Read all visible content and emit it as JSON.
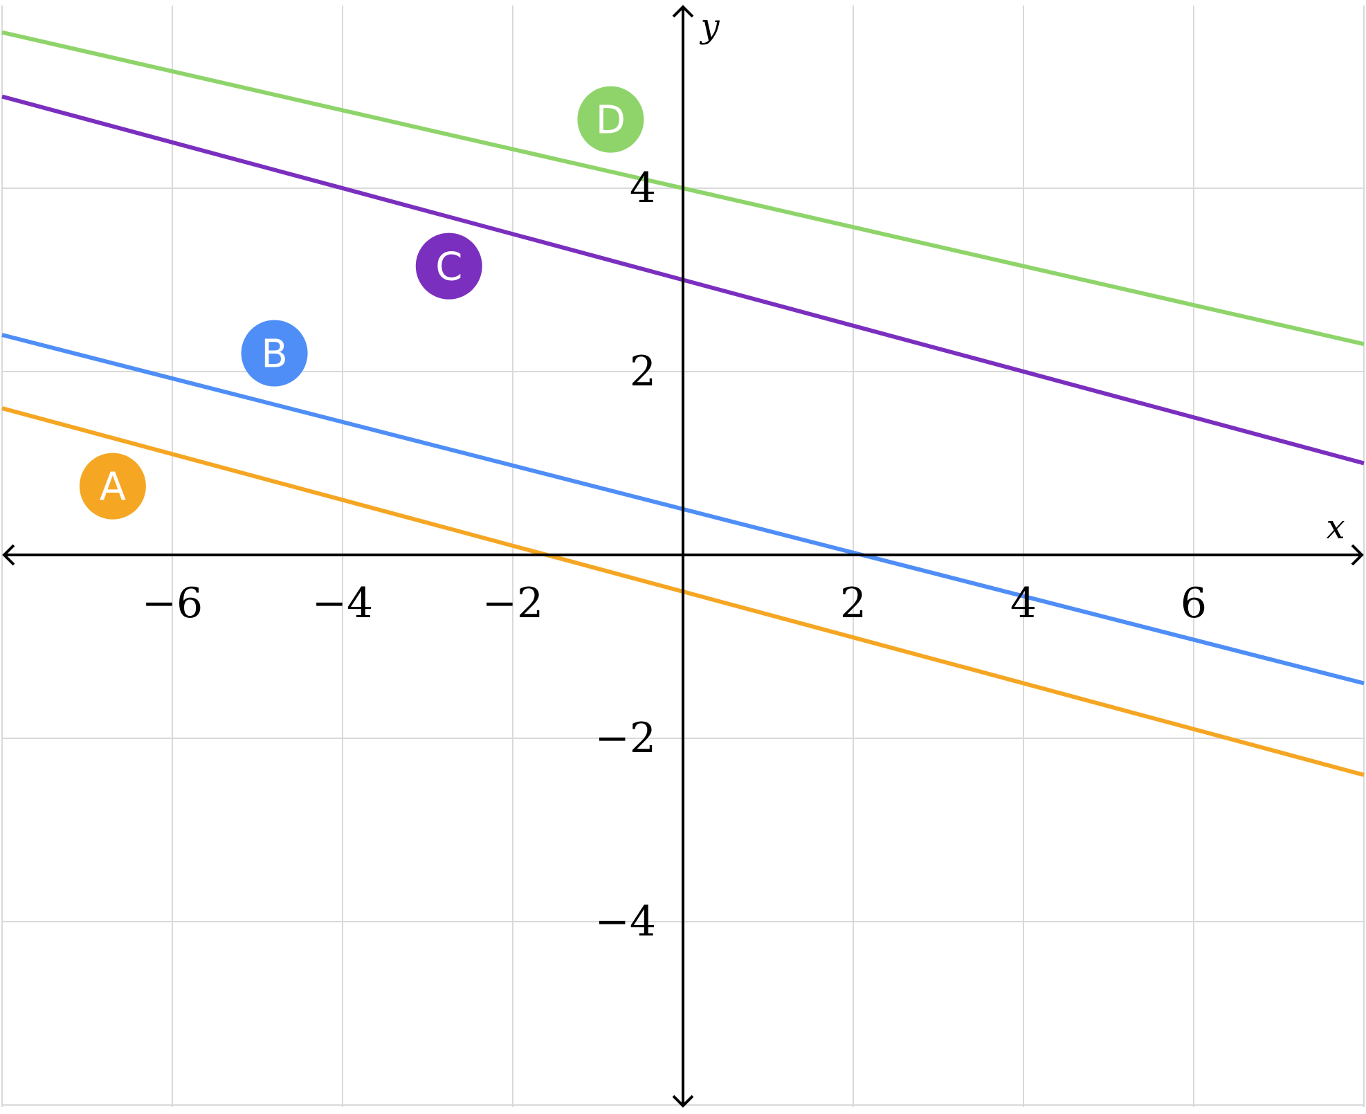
{
  "chart_data": {
    "type": "line",
    "title": "",
    "xlabel": "x",
    "ylabel": "y",
    "xlim": [
      -8,
      8
    ],
    "ylim": [
      -6,
      6
    ],
    "grid": true,
    "x_ticks": [
      -6,
      -4,
      -2,
      2,
      4,
      6
    ],
    "x_tick_labels": [
      "−6",
      "−4",
      "−2",
      "2",
      "4",
      "6"
    ],
    "y_ticks": [
      -4,
      -2,
      2,
      4
    ],
    "y_tick_labels": [
      "−4",
      "−2",
      "2",
      "4"
    ],
    "series": [
      {
        "name": "A",
        "color": "#f5a623",
        "x": [
          -8,
          8
        ],
        "y": [
          1.6,
          -2.4
        ],
        "label_at": [
          -6.7,
          0.75
        ]
      },
      {
        "name": "B",
        "color": "#4f8ef7",
        "x": [
          -8,
          8
        ],
        "y": [
          2.4,
          -1.4
        ],
        "label_at": [
          -4.8,
          2.2
        ]
      },
      {
        "name": "C",
        "color": "#7b2fbe",
        "x": [
          -8,
          8
        ],
        "y": [
          5.0,
          1.0
        ],
        "label_at": [
          -2.75,
          3.15
        ]
      },
      {
        "name": "D",
        "color": "#8ed46a",
        "x": [
          -8,
          8
        ],
        "y": [
          5.7,
          2.3
        ],
        "label_at": [
          -0.85,
          4.75
        ]
      }
    ]
  }
}
